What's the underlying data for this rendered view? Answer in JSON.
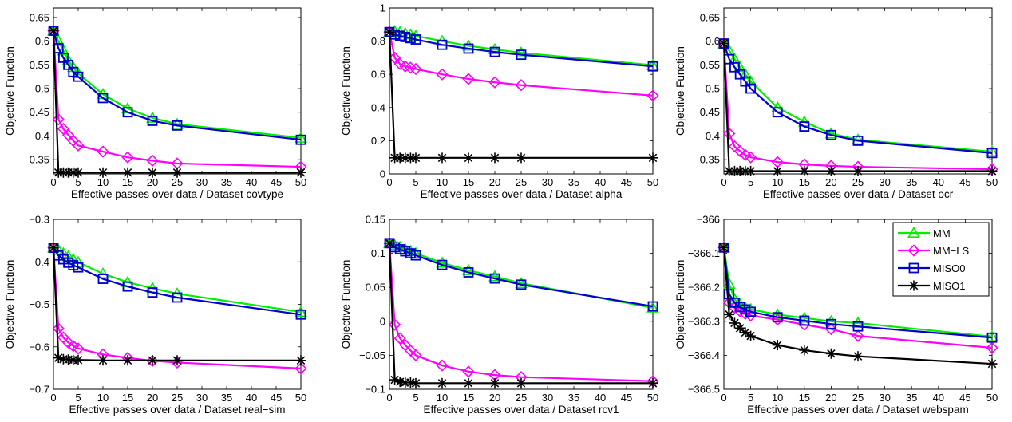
{
  "series_styles": [
    {
      "name": "MM",
      "color": "#00ee00",
      "marker": "triangle"
    },
    {
      "name": "MM−LS",
      "color": "#ff00ff",
      "marker": "diamond"
    },
    {
      "name": "MISO0",
      "color": "#0000cc",
      "marker": "square"
    },
    {
      "name": "MISO1",
      "color": "#000000",
      "marker": "asterisk"
    }
  ],
  "chart_data": [
    {
      "type": "line",
      "xlabel": "Effective passes over data / Dataset covtype",
      "ylabel": "Objective Function",
      "xlim": [
        0,
        50
      ],
      "ylim": [
        0.32,
        0.67
      ],
      "xticks": [
        0,
        5,
        10,
        15,
        20,
        25,
        30,
        35,
        40,
        45,
        50
      ],
      "yticks": [
        0.35,
        0.4,
        0.45,
        0.5,
        0.55,
        0.6,
        0.65
      ],
      "ytick_labels": [
        "0.35",
        "0.4",
        "0.45",
        "0.5",
        "0.55",
        "0.6",
        "0.65"
      ],
      "legend": null,
      "series": [
        {
          "name": "MM",
          "x": [
            0,
            1,
            2,
            3,
            4,
            5,
            10,
            15,
            20,
            25,
            50
          ],
          "y": [
            0.622,
            0.6,
            0.58,
            0.56,
            0.545,
            0.532,
            0.488,
            0.458,
            0.438,
            0.425,
            0.396
          ]
        },
        {
          "name": "MM−LS",
          "x": [
            0,
            1,
            2,
            3,
            4,
            5,
            10,
            15,
            20,
            25,
            50
          ],
          "y": [
            0.622,
            0.435,
            0.415,
            0.402,
            0.39,
            0.38,
            0.367,
            0.355,
            0.348,
            0.342,
            0.335
          ]
        },
        {
          "name": "MISO0",
          "x": [
            0,
            1,
            2,
            3,
            4,
            5,
            10,
            15,
            20,
            25,
            50
          ],
          "y": [
            0.622,
            0.585,
            0.565,
            0.55,
            0.535,
            0.525,
            0.48,
            0.45,
            0.432,
            0.422,
            0.392
          ]
        },
        {
          "name": "MISO1",
          "x": [
            0,
            1,
            2,
            3,
            4,
            5,
            10,
            15,
            20,
            25,
            50
          ],
          "y": [
            0.622,
            0.323,
            0.323,
            0.323,
            0.323,
            0.323,
            0.323,
            0.323,
            0.323,
            0.323,
            0.323
          ]
        }
      ]
    },
    {
      "type": "line",
      "xlabel": "Effective passes over data / Dataset alpha",
      "ylabel": "Objective Function",
      "xlim": [
        0,
        50
      ],
      "ylim": [
        0,
        1
      ],
      "xticks": [
        0,
        5,
        10,
        15,
        20,
        25,
        30,
        35,
        40,
        45,
        50
      ],
      "yticks": [
        0,
        0.2,
        0.4,
        0.6,
        0.8,
        1
      ],
      "ytick_labels": [
        "0",
        "0.2",
        "0.4",
        "0.6",
        "0.8",
        "1"
      ],
      "legend": null,
      "series": [
        {
          "name": "MM",
          "x": [
            0,
            1,
            2,
            3,
            4,
            5,
            10,
            15,
            20,
            25,
            50
          ],
          "y": [
            0.855,
            0.86,
            0.855,
            0.848,
            0.84,
            0.832,
            0.8,
            0.772,
            0.75,
            0.73,
            0.655
          ]
        },
        {
          "name": "MM−LS",
          "x": [
            0,
            1,
            2,
            3,
            4,
            5,
            10,
            15,
            20,
            25,
            50
          ],
          "y": [
            0.855,
            0.7,
            0.662,
            0.648,
            0.64,
            0.632,
            0.6,
            0.572,
            0.552,
            0.535,
            0.472
          ]
        },
        {
          "name": "MISO0",
          "x": [
            0,
            1,
            2,
            3,
            4,
            5,
            10,
            15,
            20,
            25,
            50
          ],
          "y": [
            0.855,
            0.84,
            0.832,
            0.825,
            0.818,
            0.81,
            0.778,
            0.755,
            0.735,
            0.718,
            0.648
          ]
        },
        {
          "name": "MISO1",
          "x": [
            0,
            1,
            2,
            3,
            4,
            5,
            10,
            15,
            20,
            25,
            50
          ],
          "y": [
            0.855,
            0.097,
            0.097,
            0.097,
            0.097,
            0.097,
            0.097,
            0.097,
            0.097,
            0.097,
            0.097
          ]
        }
      ]
    },
    {
      "type": "line",
      "xlabel": "Effective passes over data / Dataset ocr",
      "ylabel": "Objective Function",
      "xlim": [
        0,
        50
      ],
      "ylim": [
        0.32,
        0.67
      ],
      "xticks": [
        0,
        5,
        10,
        15,
        20,
        25,
        30,
        35,
        40,
        45,
        50
      ],
      "yticks": [
        0.35,
        0.4,
        0.45,
        0.5,
        0.55,
        0.6,
        0.65
      ],
      "ytick_labels": [
        "0.35",
        "0.4",
        "0.45",
        "0.5",
        "0.55",
        "0.6",
        "0.65"
      ],
      "legend": null,
      "series": [
        {
          "name": "MM",
          "x": [
            0,
            1,
            2,
            3,
            4,
            5,
            10,
            15,
            20,
            25,
            50
          ],
          "y": [
            0.595,
            0.58,
            0.562,
            0.545,
            0.53,
            0.515,
            0.46,
            0.43,
            0.405,
            0.392,
            0.367
          ]
        },
        {
          "name": "MM−LS",
          "x": [
            0,
            1,
            2,
            3,
            4,
            5,
            10,
            15,
            20,
            25,
            50
          ],
          "y": [
            0.595,
            0.405,
            0.378,
            0.368,
            0.36,
            0.355,
            0.345,
            0.34,
            0.337,
            0.335,
            0.33
          ]
        },
        {
          "name": "MISO0",
          "x": [
            0,
            1,
            2,
            3,
            4,
            5,
            10,
            15,
            20,
            25,
            50
          ],
          "y": [
            0.595,
            0.562,
            0.545,
            0.53,
            0.515,
            0.5,
            0.45,
            0.42,
            0.402,
            0.39,
            0.364
          ]
        },
        {
          "name": "MISO1",
          "x": [
            0,
            1,
            2,
            3,
            4,
            5,
            10,
            15,
            20,
            25,
            50
          ],
          "y": [
            0.595,
            0.326,
            0.326,
            0.326,
            0.326,
            0.326,
            0.326,
            0.326,
            0.326,
            0.326,
            0.326
          ]
        }
      ]
    },
    {
      "type": "line",
      "xlabel": "Effective passes over data / Dataset real−sim",
      "ylabel": "Objective Function",
      "xlim": [
        0,
        50
      ],
      "ylim": [
        -0.7,
        -0.3
      ],
      "xticks": [
        0,
        5,
        10,
        15,
        20,
        25,
        30,
        35,
        40,
        45,
        50
      ],
      "yticks": [
        -0.7,
        -0.6,
        -0.5,
        -0.4,
        -0.3
      ],
      "ytick_labels": [
        "−0.7",
        "−0.6",
        "−0.5",
        "−0.4",
        "−0.3"
      ],
      "legend": null,
      "series": [
        {
          "name": "MM",
          "x": [
            0,
            1,
            2,
            3,
            4,
            5,
            10,
            15,
            20,
            25,
            50
          ],
          "y": [
            -0.367,
            -0.372,
            -0.38,
            -0.387,
            -0.394,
            -0.401,
            -0.428,
            -0.448,
            -0.462,
            -0.475,
            -0.518
          ]
        },
        {
          "name": "MM−LS",
          "x": [
            0,
            1,
            2,
            3,
            4,
            5,
            10,
            15,
            20,
            25,
            50
          ],
          "y": [
            -0.367,
            -0.557,
            -0.578,
            -0.59,
            -0.598,
            -0.604,
            -0.618,
            -0.626,
            -0.633,
            -0.637,
            -0.651
          ]
        },
        {
          "name": "MISO0",
          "x": [
            0,
            1,
            2,
            3,
            4,
            5,
            10,
            15,
            20,
            25,
            50
          ],
          "y": [
            -0.367,
            -0.385,
            -0.394,
            -0.402,
            -0.408,
            -0.413,
            -0.44,
            -0.458,
            -0.472,
            -0.484,
            -0.524
          ]
        },
        {
          "name": "MISO1",
          "x": [
            0,
            1,
            2,
            3,
            4,
            5,
            10,
            15,
            20,
            25,
            50
          ],
          "y": [
            -0.367,
            -0.626,
            -0.629,
            -0.63,
            -0.631,
            -0.631,
            -0.632,
            -0.632,
            -0.632,
            -0.632,
            -0.632
          ]
        }
      ]
    },
    {
      "type": "line",
      "xlabel": "Effective passes over data / Dataset rcv1",
      "ylabel": "Objective Function",
      "xlim": [
        0,
        50
      ],
      "ylim": [
        -0.1,
        0.15
      ],
      "xticks": [
        0,
        5,
        10,
        15,
        20,
        25,
        30,
        35,
        40,
        45,
        50
      ],
      "yticks": [
        -0.1,
        -0.05,
        0,
        0.05,
        0.1,
        0.15
      ],
      "ytick_labels": [
        "−0.1",
        "−0.05",
        "0",
        "0.05",
        "0.1",
        "0.15"
      ],
      "legend": null,
      "series": [
        {
          "name": "MM",
          "x": [
            0,
            1,
            2,
            3,
            4,
            5,
            10,
            15,
            20,
            25,
            50
          ],
          "y": [
            0.115,
            0.112,
            0.109,
            0.106,
            0.103,
            0.1,
            0.086,
            0.075,
            0.066,
            0.056,
            0.02
          ]
        },
        {
          "name": "MM−LS",
          "x": [
            0,
            1,
            2,
            3,
            4,
            5,
            10,
            15,
            20,
            25,
            50
          ],
          "y": [
            0.115,
            -0.005,
            -0.025,
            -0.035,
            -0.043,
            -0.05,
            -0.065,
            -0.074,
            -0.079,
            -0.082,
            -0.088
          ]
        },
        {
          "name": "MISO0",
          "x": [
            0,
            1,
            2,
            3,
            4,
            5,
            10,
            15,
            20,
            25,
            50
          ],
          "y": [
            0.115,
            0.109,
            0.106,
            0.103,
            0.1,
            0.097,
            0.083,
            0.072,
            0.063,
            0.054,
            0.022
          ]
        },
        {
          "name": "MISO1",
          "x": [
            0,
            1,
            2,
            3,
            4,
            5,
            10,
            15,
            20,
            25,
            50
          ],
          "y": [
            0.115,
            -0.086,
            -0.089,
            -0.09,
            -0.09,
            -0.091,
            -0.091,
            -0.091,
            -0.091,
            -0.091,
            -0.091
          ]
        }
      ]
    },
    {
      "type": "line",
      "xlabel": "Effective passes over data / Dataset webspam",
      "ylabel": "Objective Function",
      "xlim": [
        0,
        50
      ],
      "ylim": [
        -366.5,
        -366
      ],
      "xticks": [
        0,
        5,
        10,
        15,
        20,
        25,
        30,
        35,
        40,
        45,
        50
      ],
      "yticks": [
        -366.5,
        -366.4,
        -366.3,
        -366.2,
        -366.1,
        -366
      ],
      "ytick_labels": [
        "−366.5",
        "−366.4",
        "−366.3",
        "−366.2",
        "−366.1",
        "−366"
      ],
      "legend": "top-right",
      "series": [
        {
          "name": "MM",
          "x": [
            0,
            1,
            2,
            3,
            4,
            5,
            10,
            15,
            20,
            25,
            50
          ],
          "y": [
            -366.083,
            -366.19,
            -366.235,
            -366.25,
            -366.26,
            -366.265,
            -366.28,
            -366.29,
            -366.3,
            -366.305,
            -366.345
          ]
        },
        {
          "name": "MM−LS",
          "x": [
            0,
            1,
            2,
            3,
            4,
            5,
            10,
            15,
            20,
            25,
            50
          ],
          "y": [
            -366.083,
            -366.245,
            -366.26,
            -366.27,
            -366.278,
            -366.283,
            -366.295,
            -366.31,
            -366.323,
            -366.343,
            -366.378
          ]
        },
        {
          "name": "MISO0",
          "x": [
            0,
            1,
            2,
            3,
            4,
            5,
            10,
            15,
            20,
            25,
            50
          ],
          "y": [
            -366.083,
            -366.22,
            -366.245,
            -366.258,
            -366.265,
            -366.272,
            -366.288,
            -366.298,
            -366.308,
            -366.315,
            -366.348
          ]
        },
        {
          "name": "MISO1",
          "x": [
            0,
            1,
            2,
            3,
            4,
            5,
            10,
            15,
            20,
            25,
            50
          ],
          "y": [
            -366.083,
            -366.28,
            -366.305,
            -366.32,
            -366.333,
            -366.343,
            -366.37,
            -366.385,
            -366.395,
            -366.403,
            -366.425
          ]
        }
      ]
    }
  ]
}
